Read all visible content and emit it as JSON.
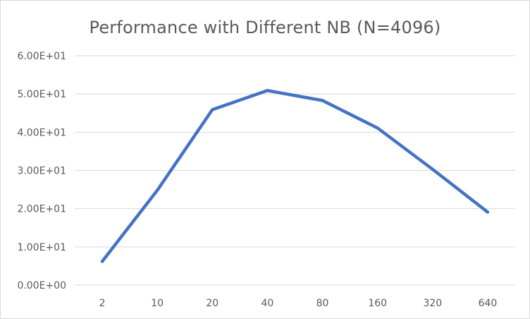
{
  "chart_data": {
    "type": "line",
    "title": "Performance with Different NB (N=4096)",
    "xlabel": "",
    "ylabel": "",
    "categories": [
      "2",
      "10",
      "20",
      "40",
      "80",
      "160",
      "320",
      "640"
    ],
    "series": [
      {
        "values": [
          6.2,
          24.8,
          45.9,
          50.9,
          48.3,
          41.1,
          30.3,
          19.1
        ]
      }
    ],
    "ylim": [
      0,
      60
    ],
    "yticks": [
      0,
      10,
      20,
      30,
      40,
      50,
      60
    ],
    "ytick_labels": [
      "0.00E+00",
      "1.00E+01",
      "2.00E+01",
      "3.00E+01",
      "4.00E+01",
      "5.00E+01",
      "6.00E+01"
    ],
    "grid": true,
    "legend": "none",
    "colors": {
      "line": "#4472C4",
      "grid": "#d9d9d9",
      "text": "#595959"
    }
  }
}
